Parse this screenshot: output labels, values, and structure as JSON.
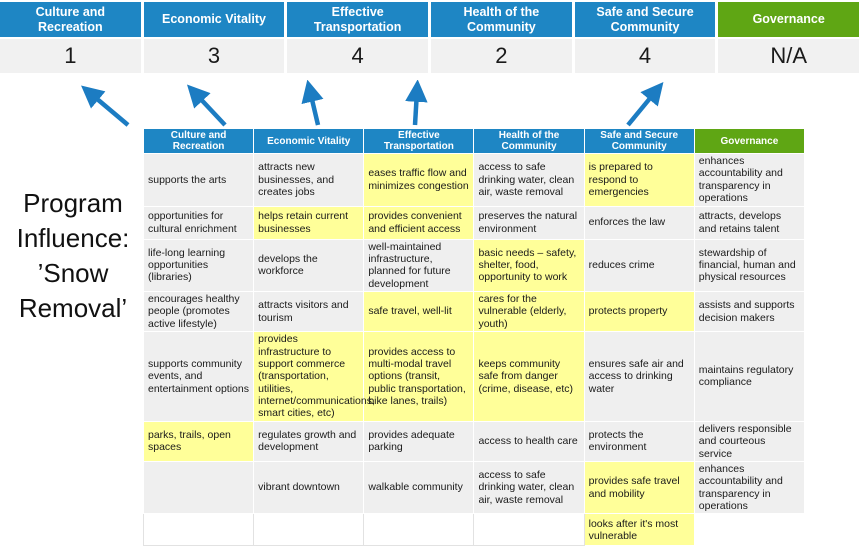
{
  "page_title": "Program Influence: ’Snow Removal’",
  "colors": {
    "header_blue": "#1E86C4",
    "governance_green": "#5FA614",
    "highlight_yellow": "#FFFF99",
    "cell_gray": "#EFEFEF",
    "score_gray": "#F1F1F1",
    "arrow_blue": "#1C7CC2"
  },
  "score_band": {
    "columns": [
      {
        "label": "Culture and Recreation",
        "score": "1",
        "theme": "blue"
      },
      {
        "label": "Economic Vitality",
        "score": "3",
        "theme": "blue"
      },
      {
        "label": "Effective Transportation",
        "score": "4",
        "theme": "blue"
      },
      {
        "label": "Health of the Community",
        "score": "2",
        "theme": "blue"
      },
      {
        "label": "Safe and Secure Community",
        "score": "4",
        "theme": "blue"
      },
      {
        "label": "Governance",
        "score": "N/A",
        "theme": "green"
      }
    ]
  },
  "influence_matrix": {
    "headers": [
      {
        "label": "Culture and Recreation",
        "theme": "blue"
      },
      {
        "label": "Economic Vitality",
        "theme": "blue"
      },
      {
        "label": "Effective Transportation",
        "theme": "blue"
      },
      {
        "label": "Health of the Community",
        "theme": "blue"
      },
      {
        "label": "Safe and Secure Community",
        "theme": "blue"
      },
      {
        "label": "Governance",
        "theme": "green"
      }
    ],
    "rows": [
      {
        "cells": [
          {
            "text": "supports the arts",
            "highlight": false
          },
          {
            "text": "attracts new businesses, and creates jobs",
            "highlight": false
          },
          {
            "text": "eases traffic flow and minimizes congestion",
            "highlight": true
          },
          {
            "text": "access to safe drinking water, clean air, waste removal",
            "highlight": false
          },
          {
            "text": "is prepared to respond to emergencies",
            "highlight": true
          },
          {
            "text": "enhances accountability and transparency in operations",
            "highlight": false
          }
        ]
      },
      {
        "cells": [
          {
            "text": "opportunities for cultural enrichment",
            "highlight": false
          },
          {
            "text": "helps retain current businesses",
            "highlight": true
          },
          {
            "text": "provides convenient and efficient access",
            "highlight": true
          },
          {
            "text": "preserves the natural environment",
            "highlight": false
          },
          {
            "text": "enforces the law",
            "highlight": false
          },
          {
            "text": "attracts, develops and retains talent",
            "highlight": false
          }
        ]
      },
      {
        "cells": [
          {
            "text": "life-long learning opportunities (libraries)",
            "highlight": false
          },
          {
            "text": "develops the workforce",
            "highlight": false
          },
          {
            "text": "well-maintained infrastructure, planned for future development",
            "highlight": false
          },
          {
            "text": "basic needs – safety, shelter, food, opportunity to work",
            "highlight": true
          },
          {
            "text": "reduces crime",
            "highlight": false
          },
          {
            "text": "stewardship of financial, human and physical resources",
            "highlight": false
          }
        ]
      },
      {
        "cells": [
          {
            "text": "encourages healthy people (promotes active lifestyle)",
            "highlight": false
          },
          {
            "text": "attracts visitors and tourism",
            "highlight": false
          },
          {
            "text": "safe travel, well-lit",
            "highlight": true
          },
          {
            "text": "cares for the vulnerable (elderly, youth)",
            "highlight": true
          },
          {
            "text": "protects property",
            "highlight": true
          },
          {
            "text": "assists and supports decision makers",
            "highlight": false
          }
        ]
      },
      {
        "cells": [
          {
            "text": "supports community events, and entertainment options",
            "highlight": false
          },
          {
            "text": "provides infrastructure to support commerce (transportation, utilities, internet/communications, smart cities, etc)",
            "highlight": true
          },
          {
            "text": "provides access to multi-modal travel options (transit, public transportation, bike lanes, trails)",
            "highlight": true
          },
          {
            "text": "keeps community safe from danger (crime, disease, etc)",
            "highlight": true
          },
          {
            "text": "ensures safe air and access to drinking water",
            "highlight": false
          },
          {
            "text": "maintains regulatory compliance",
            "highlight": false
          }
        ]
      },
      {
        "cells": [
          {
            "text": "parks, trails, open spaces",
            "highlight": true
          },
          {
            "text": "regulates growth and development",
            "highlight": false
          },
          {
            "text": "provides adequate parking",
            "highlight": false
          },
          {
            "text": "access to health care",
            "highlight": false
          },
          {
            "text": "protects the environment",
            "highlight": false
          },
          {
            "text": "delivers responsible and courteous service",
            "highlight": false
          }
        ]
      },
      {
        "cells": [
          {
            "text": "",
            "highlight": false
          },
          {
            "text": "vibrant downtown",
            "highlight": false
          },
          {
            "text": "walkable community",
            "highlight": false
          },
          {
            "text": "access to safe drinking water, clean air, waste removal",
            "highlight": false
          },
          {
            "text": "provides safe travel and mobility",
            "highlight": true
          },
          {
            "text": "enhances accountability and transparency in operations",
            "highlight": false
          }
        ]
      },
      {
        "cells": [
          {
            "text": "",
            "highlight": false,
            "variant": "blank"
          },
          {
            "text": "",
            "highlight": false,
            "variant": "blank"
          },
          {
            "text": "",
            "highlight": false,
            "variant": "blank"
          },
          {
            "text": "",
            "highlight": false,
            "variant": "blank"
          },
          {
            "text": "looks after it's most vulnerable",
            "highlight": true
          },
          {
            "text": "",
            "highlight": false,
            "variant": "none"
          }
        ]
      }
    ]
  }
}
